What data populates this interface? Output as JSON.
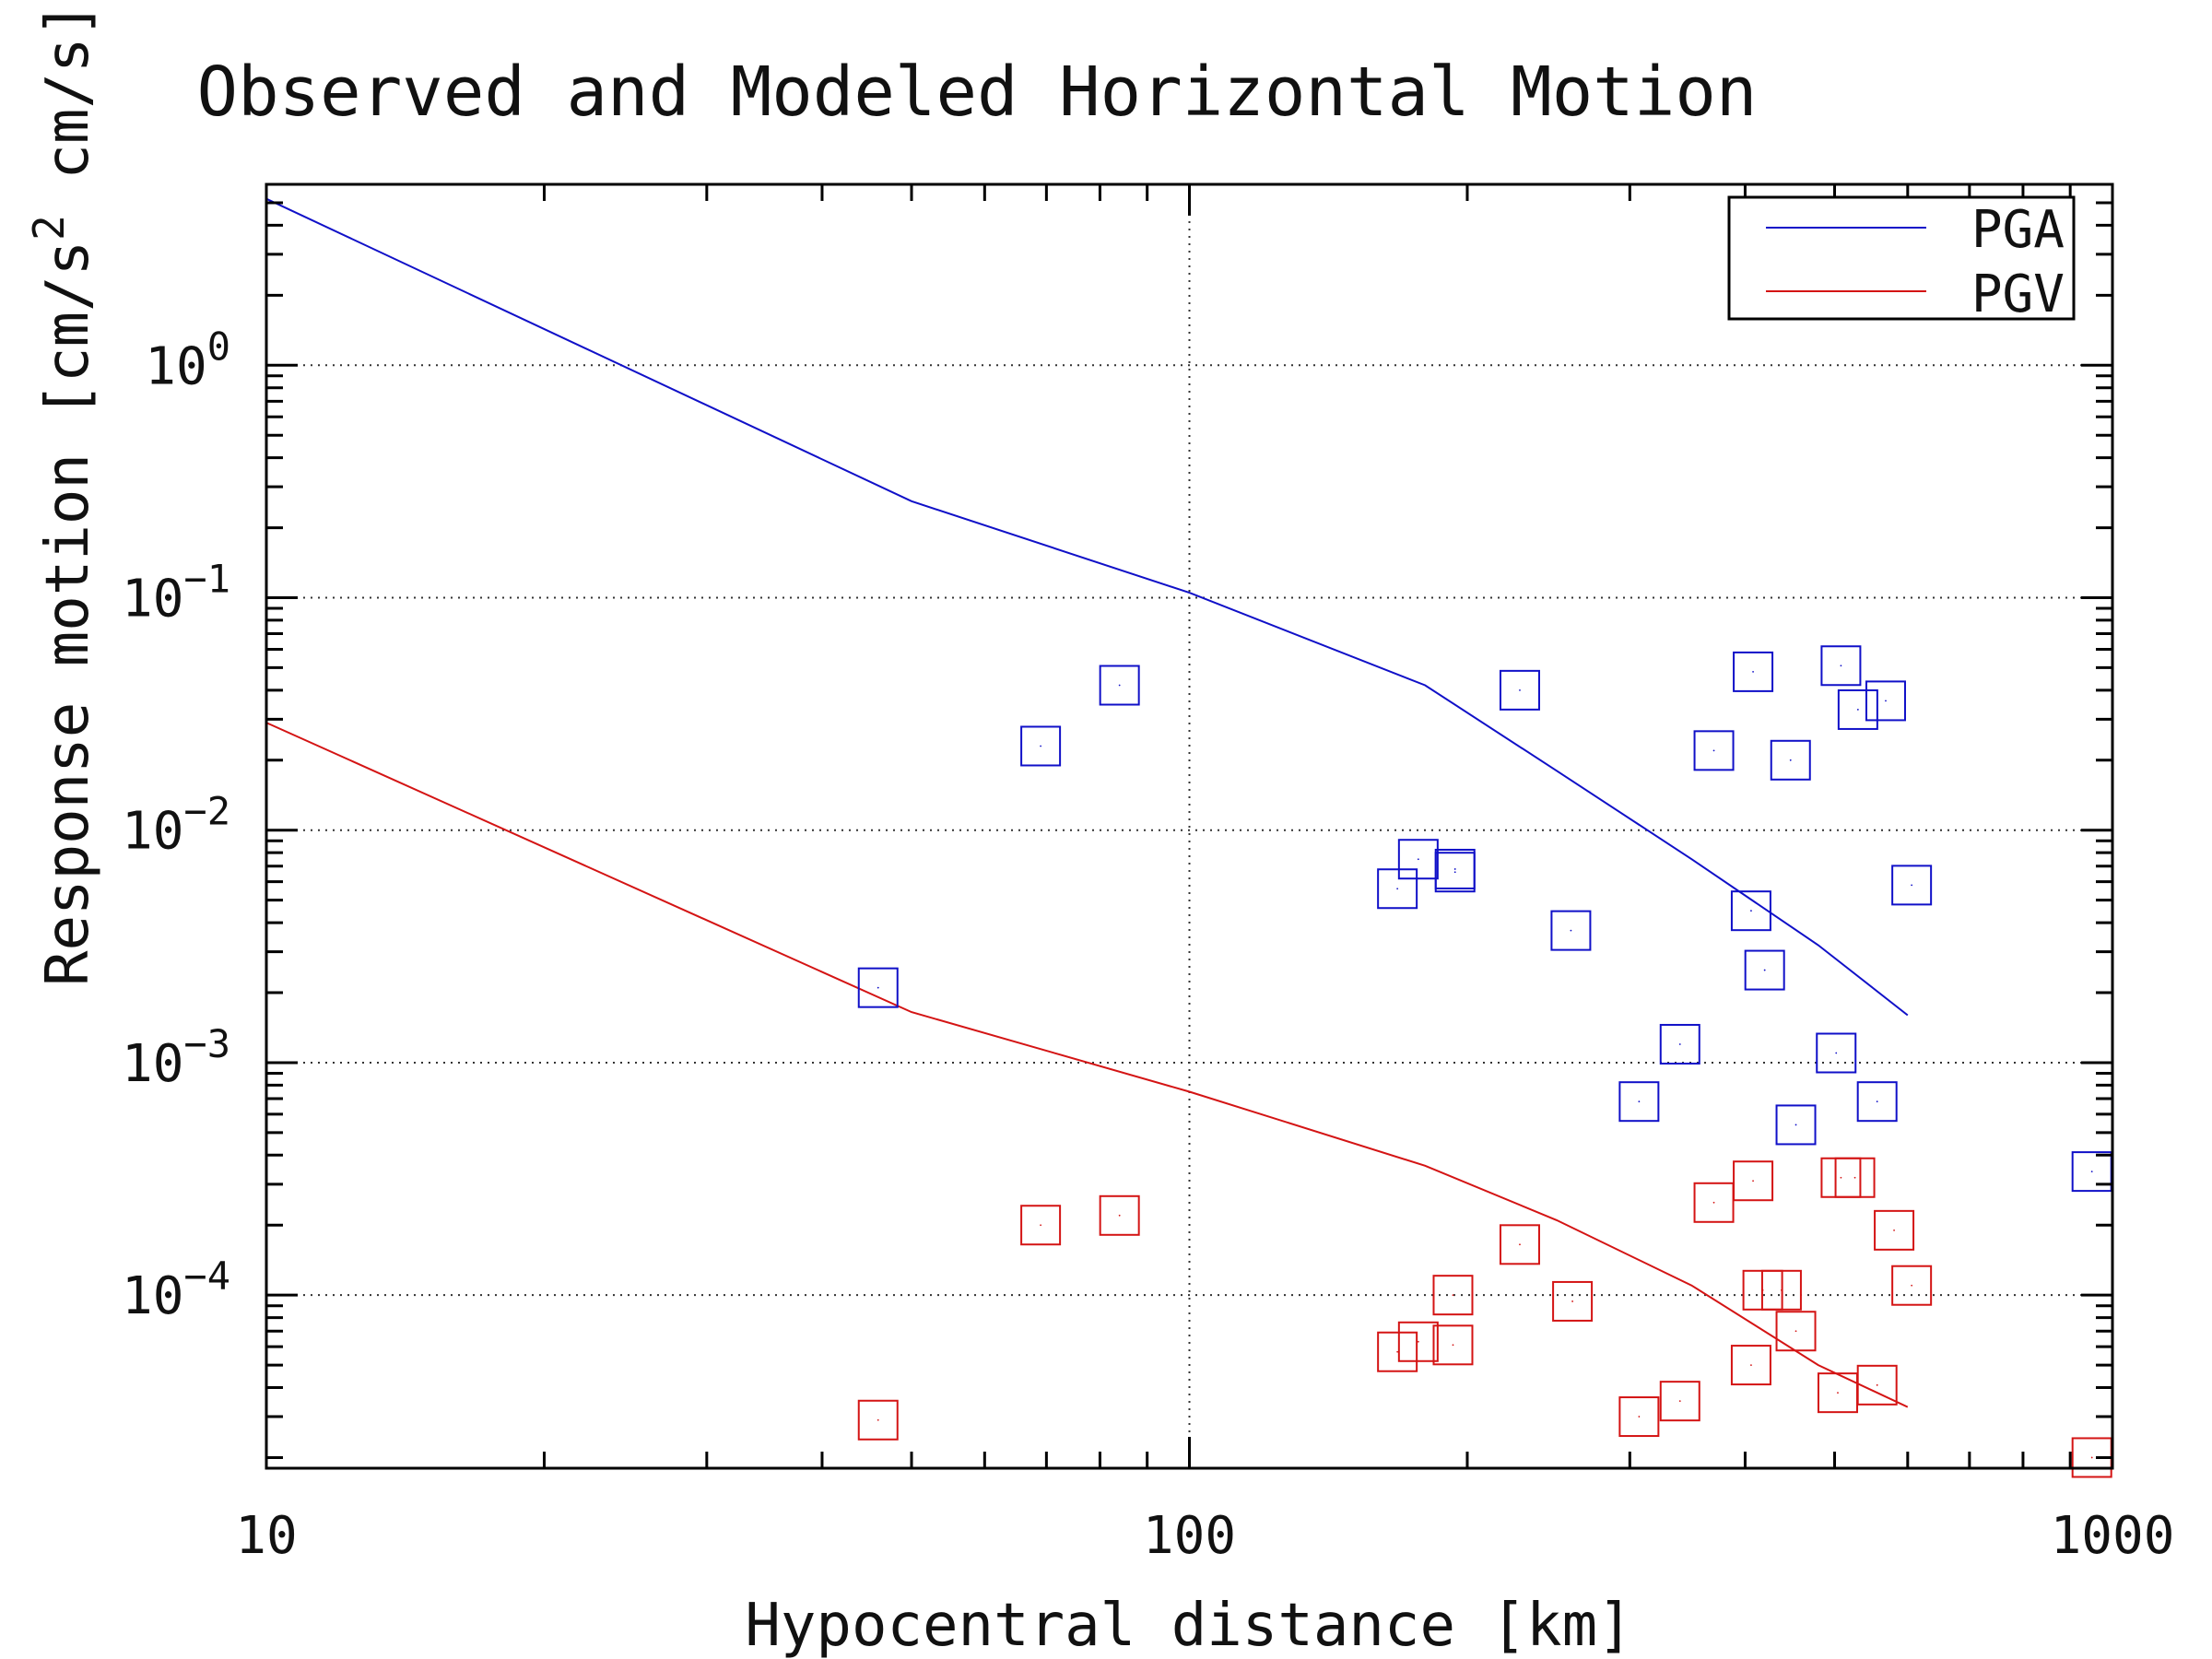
{
  "chart_data": {
    "type": "scatter",
    "title": "Observed and Modeled Horizontal Motion",
    "xlabel": "Hypocentral distance [km]",
    "ylabel": "Response motion [cm/s² cm/s]",
    "xscale": "log",
    "yscale": "log",
    "xlim": [
      10,
      1000
    ],
    "ylim": [
      1.8e-05,
      6
    ],
    "x_ticks": [
      {
        "value": 10,
        "label": "10"
      },
      {
        "value": 100,
        "label": "100"
      },
      {
        "value": 1000,
        "label": "1000"
      }
    ],
    "y_ticks": [
      {
        "value": 1,
        "base": "10",
        "exp": "0"
      },
      {
        "value": 0.1,
        "base": "10",
        "exp": "−1"
      },
      {
        "value": 0.01,
        "base": "10",
        "exp": "−2"
      },
      {
        "value": 0.001,
        "base": "10",
        "exp": "−3"
      },
      {
        "value": 0.0001,
        "base": "10",
        "exp": "−4"
      }
    ],
    "grid": "dotted",
    "legend_position": "top-right",
    "legend": [
      {
        "label": "PGA",
        "color": "#1010c8"
      },
      {
        "label": "PGV",
        "color": "#d41414"
      }
    ],
    "model_curves": [
      {
        "name": "PGA",
        "color": "#1010c8",
        "x": [
          10,
          50,
          100,
          180,
          250,
          350,
          480,
          600
        ],
        "y": [
          5.2,
          0.26,
          0.105,
          0.042,
          0.018,
          0.0075,
          0.0032,
          0.0016
        ]
      },
      {
        "name": "PGV",
        "color": "#d41414",
        "x": [
          10,
          50,
          100,
          180,
          250,
          350,
          480,
          600
        ],
        "y": [
          0.029,
          0.00165,
          0.00075,
          0.00036,
          0.00021,
          0.00011,
          5e-05,
          3.3e-05
        ]
      }
    ],
    "observed": [
      {
        "name": "PGA",
        "color": "#1010c8",
        "x": [
          46,
          69,
          84,
          168,
          177,
          194,
          194,
          228,
          259,
          307,
          340,
          370,
          406,
          408,
          420,
          448,
          454,
          502,
          508,
          530,
          556,
          568,
          606,
          950
        ],
        "y": [
          0.0021,
          0.023,
          0.042,
          0.0056,
          0.0075,
          0.0068,
          0.0066,
          0.04,
          0.0037,
          0.00068,
          0.0012,
          0.022,
          0.0045,
          0.048,
          0.0025,
          0.02,
          0.00054,
          0.0011,
          0.051,
          0.033,
          0.00068,
          0.036,
          0.0058,
          0.00034
        ]
      },
      {
        "name": "PGV",
        "color": "#d41414",
        "x": [
          46,
          69,
          84,
          168,
          177,
          193,
          193,
          228,
          260,
          307,
          340,
          370,
          406,
          408,
          418,
          438,
          454,
          504,
          508,
          526,
          556,
          580,
          606,
          950
        ],
        "y": [
          2.9e-05,
          0.0002,
          0.00022,
          5.7e-05,
          6.3e-05,
          0.0001,
          6.1e-05,
          0.000165,
          9.4e-05,
          3e-05,
          3.5e-05,
          0.00025,
          5e-05,
          0.00031,
          0.000105,
          0.000105,
          7e-05,
          3.8e-05,
          0.00032,
          0.00032,
          4.1e-05,
          0.00019,
          0.00011,
          2e-05
        ]
      }
    ]
  }
}
